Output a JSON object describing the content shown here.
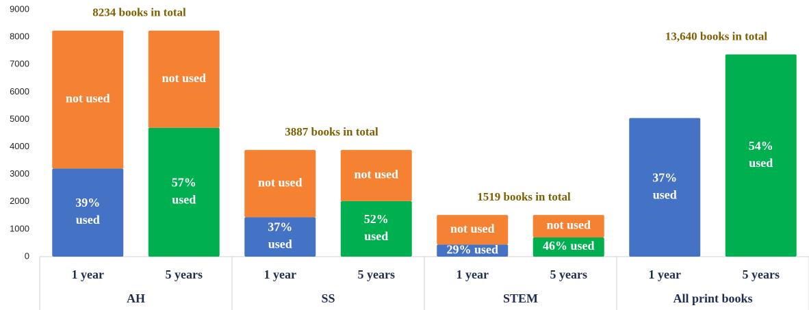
{
  "chart_data": {
    "type": "stacked_bar",
    "categories": [
      "1 year",
      "5 years",
      "1 year",
      "5 years",
      "1 year",
      "5 years",
      "1 year",
      "5 years"
    ],
    "groups": [
      "AH",
      "SS",
      "STEM",
      "All print books"
    ],
    "series": [
      {
        "name": "used",
        "colors": [
          "#4472c4",
          "#00b050",
          "#4472c4",
          "#00b050",
          "#4472c4",
          "#00b050",
          "#4472c4",
          "#00b050"
        ],
        "values": [
          3211,
          4693,
          1438,
          2021,
          441,
          699,
          5047,
          7366
        ],
        "segment_labels": [
          {
            "value": 39,
            "label": "39% used"
          },
          {
            "value": 57,
            "label": "57% used"
          },
          {
            "value": 37,
            "label": "37% used"
          },
          {
            "value": 52,
            "label": "52% used"
          },
          {
            "value": 29,
            "label": "29% used"
          },
          {
            "value": 46,
            "label": "46% used"
          },
          {
            "value": 37,
            "label": "37% used"
          },
          {
            "value": 54,
            "label": "54% used"
          }
        ]
      },
      {
        "name": "not used",
        "color": "#f58232",
        "values": [
          5023,
          3541,
          2449,
          1866,
          1078,
          820,
          null,
          null
        ]
      }
    ],
    "totals": [
      {
        "value": 8234,
        "label": "8234 books in total"
      },
      {
        "value": 3887,
        "label": "3887 books in total"
      },
      {
        "value": 1519,
        "label": "1519 books in total"
      },
      {
        "value": 13640,
        "label": "13,640 books in total"
      }
    ],
    "ylim": [
      0,
      9000
    ],
    "yticks": [
      0,
      1000,
      2000,
      3000,
      4000,
      5000,
      6000,
      7000,
      8000,
      9000
    ]
  }
}
